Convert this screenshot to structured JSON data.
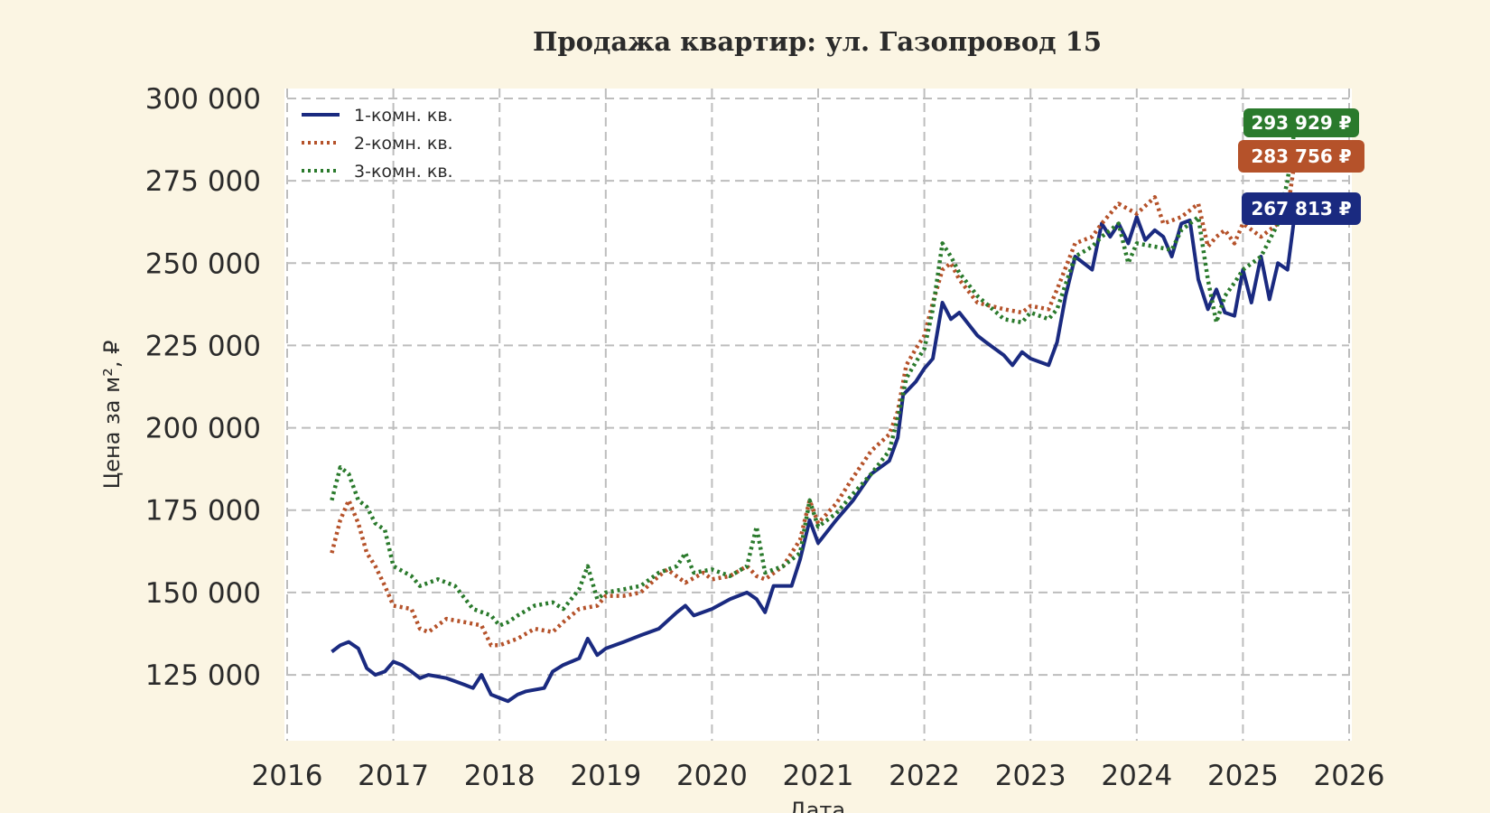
{
  "chart_data": {
    "type": "line",
    "title": "Продажа квартир: ул. Газопровод 15",
    "xlabel": "Дата",
    "ylabel": "Цена за м², ₽",
    "xlim": [
      2016,
      2026
    ],
    "ylim": [
      105000,
      303000
    ],
    "x_ticks": [
      2016,
      2017,
      2018,
      2019,
      2020,
      2021,
      2022,
      2023,
      2024,
      2025,
      2026
    ],
    "x_tick_labels": [
      "2016",
      "2017",
      "2018",
      "2019",
      "2020",
      "2021",
      "2022",
      "2023",
      "2024",
      "2025",
      "2026"
    ],
    "y_ticks": [
      125000,
      150000,
      175000,
      200000,
      225000,
      250000,
      275000,
      300000
    ],
    "y_tick_labels": [
      "125 000",
      "150 000",
      "175 000",
      "200 000",
      "225 000",
      "250 000",
      "275 000",
      "300 000"
    ],
    "grid": true,
    "legend_position": "top-left",
    "series": [
      {
        "name": "1-комн. кв.",
        "color": "#1a2a80",
        "style": "solid",
        "last_label": "267 813 ₽",
        "points": [
          [
            2016.42,
            132000
          ],
          [
            2016.5,
            134000
          ],
          [
            2016.58,
            135000
          ],
          [
            2016.67,
            133000
          ],
          [
            2016.75,
            127000
          ],
          [
            2016.83,
            125000
          ],
          [
            2016.92,
            126000
          ],
          [
            2017.0,
            129000
          ],
          [
            2017.08,
            128000
          ],
          [
            2017.17,
            126000
          ],
          [
            2017.25,
            124000
          ],
          [
            2017.33,
            125000
          ],
          [
            2017.5,
            124000
          ],
          [
            2017.67,
            122000
          ],
          [
            2017.75,
            121000
          ],
          [
            2017.83,
            125000
          ],
          [
            2017.92,
            119000
          ],
          [
            2018.0,
            118000
          ],
          [
            2018.08,
            117000
          ],
          [
            2018.17,
            119000
          ],
          [
            2018.25,
            120000
          ],
          [
            2018.42,
            121000
          ],
          [
            2018.5,
            126000
          ],
          [
            2018.6,
            128000
          ],
          [
            2018.75,
            130000
          ],
          [
            2018.83,
            136000
          ],
          [
            2018.92,
            131000
          ],
          [
            2019.0,
            133000
          ],
          [
            2019.17,
            135000
          ],
          [
            2019.33,
            137000
          ],
          [
            2019.5,
            139000
          ],
          [
            2019.67,
            144000
          ],
          [
            2019.75,
            146000
          ],
          [
            2019.83,
            143000
          ],
          [
            2020.0,
            145000
          ],
          [
            2020.17,
            148000
          ],
          [
            2020.33,
            150000
          ],
          [
            2020.42,
            148000
          ],
          [
            2020.5,
            144000
          ],
          [
            2020.58,
            152000
          ],
          [
            2020.75,
            152000
          ],
          [
            2020.83,
            160000
          ],
          [
            2020.92,
            172000
          ],
          [
            2021.0,
            165000
          ],
          [
            2021.17,
            172000
          ],
          [
            2021.33,
            178000
          ],
          [
            2021.5,
            186000
          ],
          [
            2021.67,
            190000
          ],
          [
            2021.75,
            197000
          ],
          [
            2021.8,
            210000
          ],
          [
            2021.92,
            214000
          ],
          [
            2022.0,
            218000
          ],
          [
            2022.08,
            221000
          ],
          [
            2022.17,
            238000
          ],
          [
            2022.25,
            233000
          ],
          [
            2022.33,
            235000
          ],
          [
            2022.5,
            228000
          ],
          [
            2022.58,
            226000
          ],
          [
            2022.75,
            222000
          ],
          [
            2022.83,
            219000
          ],
          [
            2022.92,
            223000
          ],
          [
            2023.0,
            221000
          ],
          [
            2023.17,
            219000
          ],
          [
            2023.25,
            226000
          ],
          [
            2023.33,
            240000
          ],
          [
            2023.42,
            252000
          ],
          [
            2023.58,
            248000
          ],
          [
            2023.67,
            262000
          ],
          [
            2023.75,
            258000
          ],
          [
            2023.83,
            262000
          ],
          [
            2023.92,
            256000
          ],
          [
            2024.0,
            264000
          ],
          [
            2024.08,
            257000
          ],
          [
            2024.17,
            260000
          ],
          [
            2024.25,
            258000
          ],
          [
            2024.33,
            252000
          ],
          [
            2024.42,
            262000
          ],
          [
            2024.5,
            263000
          ],
          [
            2024.58,
            245000
          ],
          [
            2024.67,
            236000
          ],
          [
            2024.75,
            242000
          ],
          [
            2024.83,
            235000
          ],
          [
            2024.92,
            234000
          ],
          [
            2025.0,
            248000
          ],
          [
            2025.08,
            238000
          ],
          [
            2025.17,
            252000
          ],
          [
            2025.25,
            239000
          ],
          [
            2025.33,
            250000
          ],
          [
            2025.42,
            248000
          ],
          [
            2025.5,
            267813
          ]
        ]
      },
      {
        "name": "2-комн. кв.",
        "color": "#b5522a",
        "style": "dotted",
        "last_label": "283 756 ₽",
        "points": [
          [
            2016.42,
            162000
          ],
          [
            2016.5,
            172000
          ],
          [
            2016.58,
            178000
          ],
          [
            2016.67,
            171000
          ],
          [
            2016.75,
            162000
          ],
          [
            2016.83,
            158000
          ],
          [
            2016.92,
            152000
          ],
          [
            2017.0,
            146000
          ],
          [
            2017.17,
            145000
          ],
          [
            2017.25,
            139000
          ],
          [
            2017.33,
            138000
          ],
          [
            2017.5,
            142000
          ],
          [
            2017.67,
            141000
          ],
          [
            2017.83,
            140000
          ],
          [
            2017.92,
            134000
          ],
          [
            2018.0,
            134000
          ],
          [
            2018.17,
            136000
          ],
          [
            2018.33,
            139000
          ],
          [
            2018.5,
            138000
          ],
          [
            2018.6,
            141000
          ],
          [
            2018.75,
            145000
          ],
          [
            2018.92,
            146000
          ],
          [
            2019.0,
            149000
          ],
          [
            2019.17,
            149000
          ],
          [
            2019.33,
            150000
          ],
          [
            2019.5,
            155000
          ],
          [
            2019.58,
            157000
          ],
          [
            2019.75,
            153000
          ],
          [
            2019.92,
            156000
          ],
          [
            2020.0,
            154000
          ],
          [
            2020.17,
            155000
          ],
          [
            2020.33,
            158000
          ],
          [
            2020.42,
            155000
          ],
          [
            2020.5,
            154000
          ],
          [
            2020.67,
            158000
          ],
          [
            2020.83,
            166000
          ],
          [
            2020.92,
            178000
          ],
          [
            2021.0,
            171000
          ],
          [
            2021.17,
            177000
          ],
          [
            2021.33,
            185000
          ],
          [
            2021.5,
            193000
          ],
          [
            2021.67,
            198000
          ],
          [
            2021.75,
            205000
          ],
          [
            2021.83,
            219000
          ],
          [
            2021.92,
            224000
          ],
          [
            2022.0,
            228000
          ],
          [
            2022.08,
            238000
          ],
          [
            2022.17,
            248000
          ],
          [
            2022.25,
            250000
          ],
          [
            2022.33,
            245000
          ],
          [
            2022.5,
            238000
          ],
          [
            2022.75,
            236000
          ],
          [
            2022.92,
            235000
          ],
          [
            2023.0,
            237000
          ],
          [
            2023.17,
            236000
          ],
          [
            2023.25,
            242000
          ],
          [
            2023.42,
            256000
          ],
          [
            2023.58,
            258000
          ],
          [
            2023.67,
            262000
          ],
          [
            2023.83,
            268000
          ],
          [
            2024.0,
            265000
          ],
          [
            2024.17,
            270000
          ],
          [
            2024.25,
            262000
          ],
          [
            2024.42,
            264000
          ],
          [
            2024.58,
            268000
          ],
          [
            2024.67,
            255000
          ],
          [
            2024.75,
            258000
          ],
          [
            2024.83,
            260000
          ],
          [
            2024.92,
            256000
          ],
          [
            2025.0,
            262000
          ],
          [
            2025.17,
            258000
          ],
          [
            2025.33,
            262000
          ],
          [
            2025.42,
            266000
          ],
          [
            2025.5,
            283756
          ]
        ]
      },
      {
        "name": "3-комн. кв.",
        "color": "#2a7a2c",
        "style": "dotted",
        "last_label": "293 929 ₽",
        "points": [
          [
            2016.42,
            178000
          ],
          [
            2016.5,
            188000
          ],
          [
            2016.58,
            186000
          ],
          [
            2016.67,
            178000
          ],
          [
            2016.75,
            176000
          ],
          [
            2016.83,
            171000
          ],
          [
            2016.92,
            169000
          ],
          [
            2017.0,
            158000
          ],
          [
            2017.17,
            155000
          ],
          [
            2017.25,
            152000
          ],
          [
            2017.42,
            154000
          ],
          [
            2017.58,
            152000
          ],
          [
            2017.75,
            145000
          ],
          [
            2017.92,
            143000
          ],
          [
            2018.0,
            140000
          ],
          [
            2018.08,
            141000
          ],
          [
            2018.17,
            143000
          ],
          [
            2018.33,
            146000
          ],
          [
            2018.5,
            147000
          ],
          [
            2018.6,
            145000
          ],
          [
            2018.75,
            151000
          ],
          [
            2018.83,
            158000
          ],
          [
            2018.92,
            148000
          ],
          [
            2019.0,
            150000
          ],
          [
            2019.17,
            151000
          ],
          [
            2019.33,
            152000
          ],
          [
            2019.5,
            156000
          ],
          [
            2019.67,
            158000
          ],
          [
            2019.75,
            162000
          ],
          [
            2019.83,
            156000
          ],
          [
            2020.0,
            157000
          ],
          [
            2020.17,
            155000
          ],
          [
            2020.33,
            158000
          ],
          [
            2020.42,
            170000
          ],
          [
            2020.5,
            156000
          ],
          [
            2020.67,
            158000
          ],
          [
            2020.83,
            162000
          ],
          [
            2020.92,
            178000
          ],
          [
            2021.0,
            170000
          ],
          [
            2021.17,
            174000
          ],
          [
            2021.33,
            180000
          ],
          [
            2021.5,
            186000
          ],
          [
            2021.67,
            193000
          ],
          [
            2021.75,
            203000
          ],
          [
            2021.83,
            215000
          ],
          [
            2021.92,
            220000
          ],
          [
            2022.0,
            224000
          ],
          [
            2022.08,
            236000
          ],
          [
            2022.17,
            256000
          ],
          [
            2022.25,
            252000
          ],
          [
            2022.33,
            247000
          ],
          [
            2022.5,
            240000
          ],
          [
            2022.75,
            233000
          ],
          [
            2022.92,
            232000
          ],
          [
            2023.0,
            235000
          ],
          [
            2023.17,
            233000
          ],
          [
            2023.25,
            236000
          ],
          [
            2023.42,
            252000
          ],
          [
            2023.58,
            255000
          ],
          [
            2023.67,
            258000
          ],
          [
            2023.83,
            262000
          ],
          [
            2023.92,
            250000
          ],
          [
            2024.0,
            256000
          ],
          [
            2024.17,
            255000
          ],
          [
            2024.33,
            254000
          ],
          [
            2024.42,
            260000
          ],
          [
            2024.58,
            264000
          ],
          [
            2024.67,
            245000
          ],
          [
            2024.75,
            232000
          ],
          [
            2024.83,
            240000
          ],
          [
            2024.92,
            244000
          ],
          [
            2025.0,
            248000
          ],
          [
            2025.17,
            252000
          ],
          [
            2025.33,
            262000
          ],
          [
            2025.42,
            275000
          ],
          [
            2025.5,
            293929
          ]
        ]
      }
    ]
  }
}
